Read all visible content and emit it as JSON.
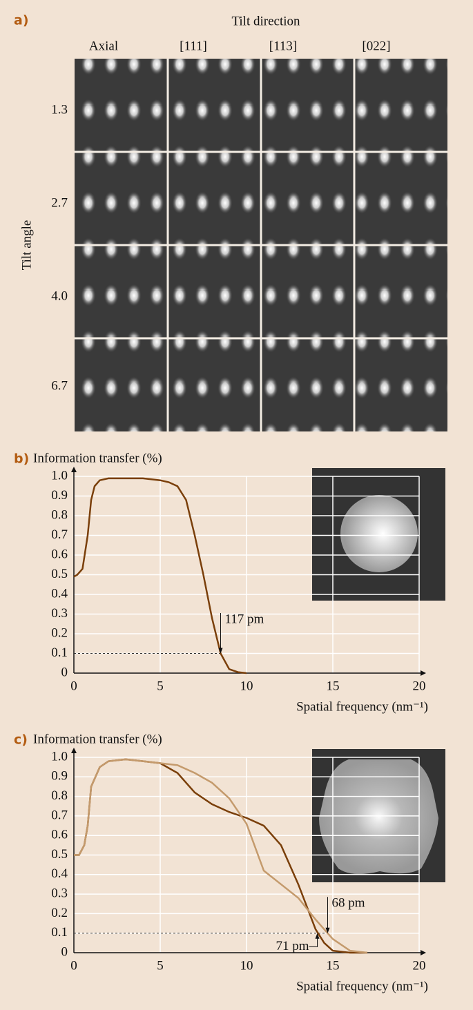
{
  "image_grid": {
    "label": "a)",
    "title": "Tilt direction",
    "columns": [
      "Axial",
      "[111]",
      "[113]",
      "[022]"
    ],
    "rows_title": "Tilt angle",
    "rows": [
      "1.3",
      "2.7",
      "4.0",
      "6.7"
    ]
  },
  "chart_data": [
    {
      "type": "line",
      "label": "b)",
      "title": "Information transfer (%)",
      "xlabel": "Spatial frequency (nm⁻¹)",
      "x": [
        0,
        0.2,
        0.5,
        0.8,
        1.0,
        1.2,
        1.5,
        2,
        3,
        4,
        5,
        5.5,
        6,
        6.5,
        7,
        7.5,
        8,
        8.5,
        9,
        9.5,
        10
      ],
      "series": [
        {
          "color": "#7a3f0a",
          "values": [
            0.49,
            0.5,
            0.53,
            0.7,
            0.88,
            0.95,
            0.98,
            0.99,
            0.99,
            0.99,
            0.98,
            0.97,
            0.95,
            0.88,
            0.7,
            0.5,
            0.28,
            0.1,
            0.02,
            0.005,
            0
          ]
        }
      ],
      "threshold": 0.1,
      "annotations": [
        {
          "text": "117 pm",
          "x": 8.5,
          "y": 0.1
        }
      ],
      "xlim": [
        0,
        20
      ],
      "ylim": [
        0,
        1
      ],
      "xticks": [
        0,
        5,
        10,
        15,
        20
      ],
      "yticks": [
        0,
        0.1,
        0.2,
        0.3,
        0.4,
        0.5,
        0.6,
        0.7,
        0.8,
        0.9,
        {
          "value": 1,
          "label": "1.0"
        }
      ],
      "grid": true
    },
    {
      "type": "line",
      "label": "c)",
      "title": "Information transfer (%)",
      "xlabel": "Spatial frequency (nm⁻¹)",
      "x": [
        0,
        0.3,
        0.6,
        0.8,
        1,
        1.5,
        2,
        3,
        4,
        5,
        6,
        7,
        8,
        9,
        10,
        11,
        12,
        13,
        14,
        14.5,
        15,
        16,
        17
      ],
      "series": [
        {
          "color": "#7a3f0a",
          "values": [
            0.5,
            0.5,
            0.55,
            0.65,
            0.85,
            0.95,
            0.98,
            0.99,
            0.98,
            0.97,
            0.92,
            0.82,
            0.76,
            0.72,
            0.69,
            0.65,
            0.55,
            0.35,
            0.12,
            0.05,
            0.01,
            0,
            0
          ]
        },
        {
          "color": "#c49a6c",
          "values": [
            0.5,
            0.5,
            0.55,
            0.65,
            0.85,
            0.95,
            0.98,
            0.99,
            0.98,
            0.97,
            0.96,
            0.92,
            0.87,
            0.79,
            0.66,
            0.42,
            0.35,
            0.28,
            0.17,
            0.12,
            0.07,
            0.01,
            0
          ]
        }
      ],
      "threshold": 0.1,
      "annotations": [
        {
          "text": "68 pm",
          "x": 14.7,
          "y": 0.1
        },
        {
          "text": "71 pm",
          "x": 14.1,
          "y": 0.1
        }
      ],
      "xlim": [
        0,
        20
      ],
      "ylim": [
        0,
        1
      ],
      "xticks": [
        0,
        5,
        10,
        15,
        20
      ],
      "yticks": [
        0,
        0.1,
        0.2,
        0.3,
        0.4,
        0.5,
        0.6,
        0.7,
        0.8,
        0.9,
        {
          "value": 1,
          "label": "1.0"
        }
      ],
      "grid": true
    }
  ]
}
